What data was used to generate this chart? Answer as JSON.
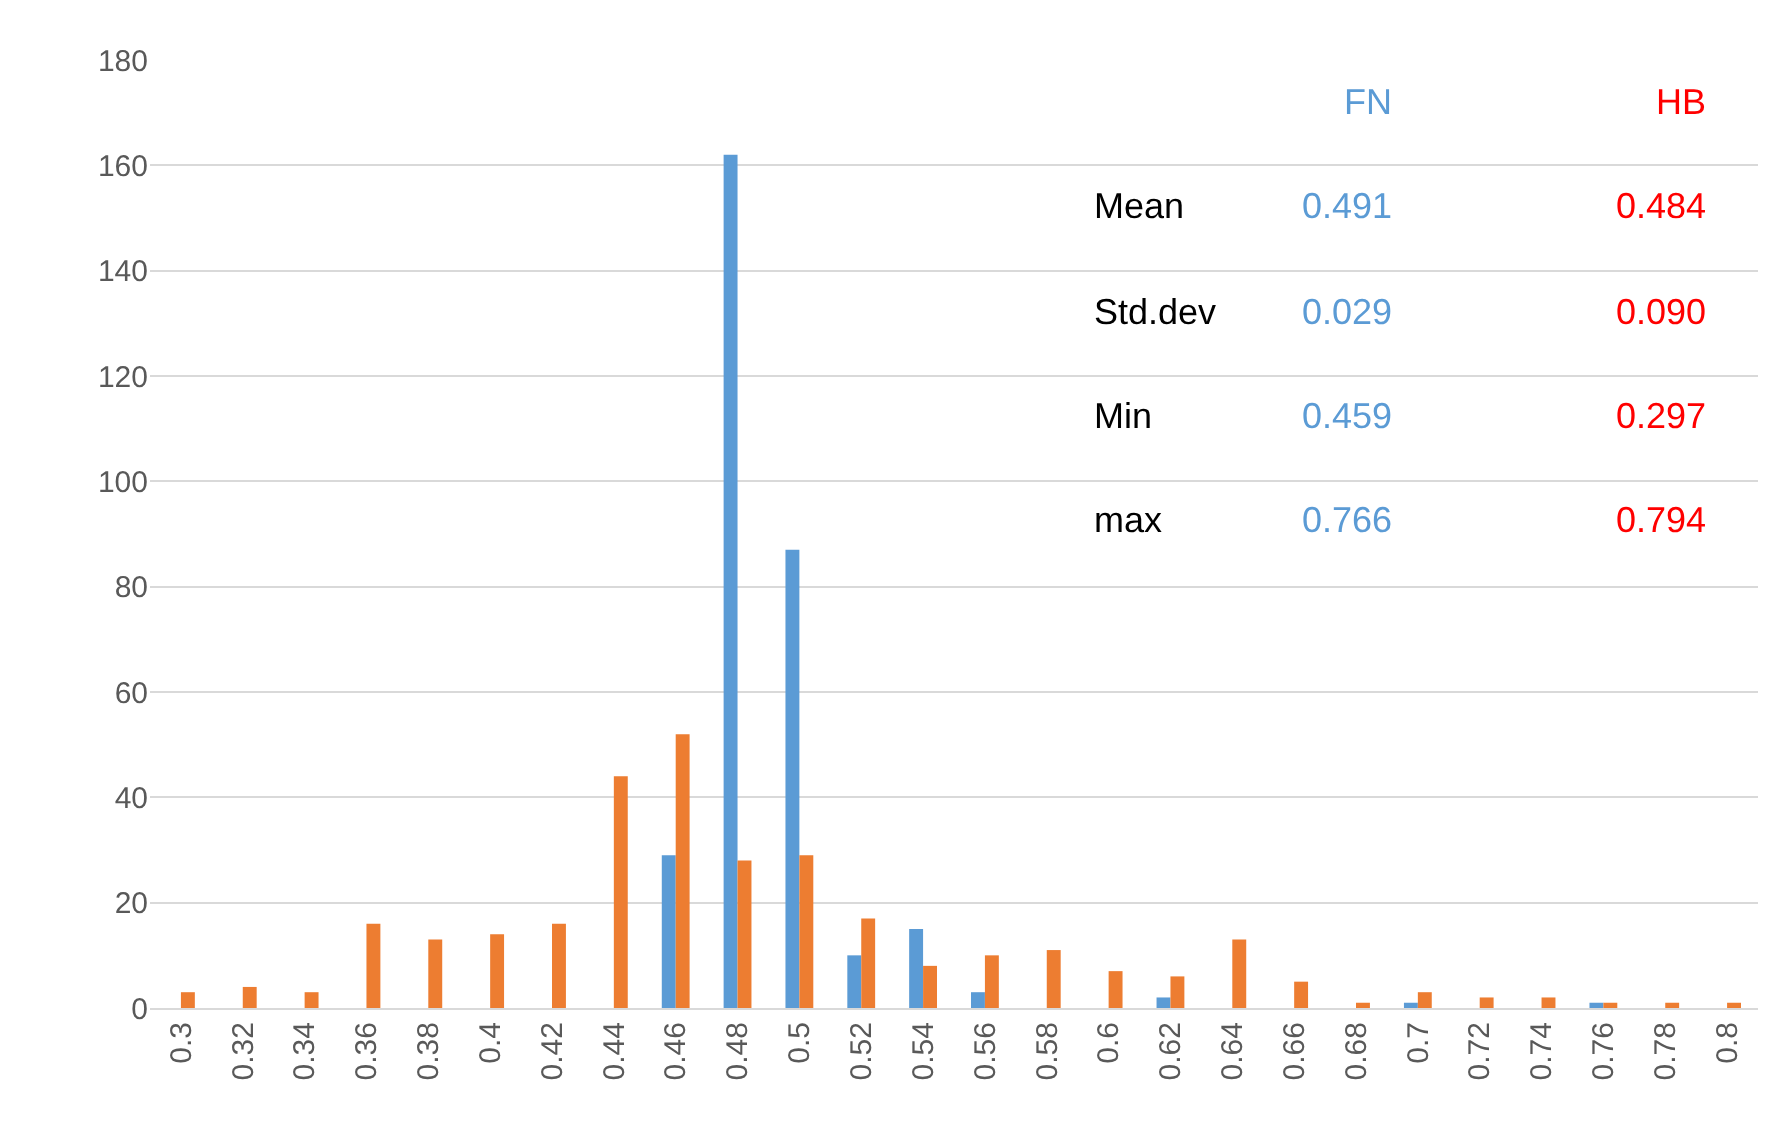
{
  "chart_data": {
    "type": "bar",
    "categories": [
      "0.3",
      "0.32",
      "0.34",
      "0.36",
      "0.38",
      "0.4",
      "0.42",
      "0.44",
      "0.46",
      "0.48",
      "0.5",
      "0.52",
      "0.54",
      "0.56",
      "0.58",
      "0.6",
      "0.62",
      "0.64",
      "0.66",
      "0.68",
      "0.7",
      "0.72",
      "0.74",
      "0.76",
      "0.78",
      "0.8"
    ],
    "series": [
      {
        "color": "#5b9bd5",
        "values": [
          0,
          0,
          0,
          0,
          0,
          0,
          0,
          0,
          29,
          162,
          87,
          10,
          15,
          3,
          0,
          0,
          2,
          0,
          0,
          0,
          1,
          0,
          0,
          1,
          0,
          0
        ]
      },
      {
        "color": "#ed7d31",
        "values": [
          3,
          4,
          3,
          16,
          13,
          14,
          16,
          44,
          52,
          28,
          29,
          17,
          8,
          10,
          11,
          7,
          6,
          13,
          5,
          1,
          3,
          2,
          2,
          1,
          1,
          1
        ]
      }
    ],
    "ylim": [
      0,
      180
    ],
    "yticks": [
      0,
      20,
      40,
      60,
      80,
      100,
      120,
      140,
      160,
      180
    ],
    "grid": "y",
    "annotations": [
      "FN",
      "HB",
      "Mean",
      "0.491",
      "0.484",
      "Std.dev",
      "0.029",
      "0.090",
      "Min",
      "0.459",
      "0.297",
      "max",
      "0.766",
      "0.794"
    ]
  }
}
